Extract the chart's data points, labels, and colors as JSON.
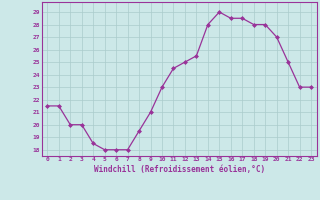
{
  "x": [
    0,
    1,
    2,
    3,
    4,
    5,
    6,
    7,
    8,
    9,
    10,
    11,
    12,
    13,
    14,
    15,
    16,
    17,
    18,
    19,
    20,
    21,
    22,
    23
  ],
  "y": [
    21.5,
    21.5,
    20.0,
    20.0,
    18.5,
    18.0,
    18.0,
    18.0,
    19.5,
    21.0,
    23.0,
    24.5,
    25.0,
    25.5,
    28.0,
    29.0,
    28.5,
    28.5,
    28.0,
    28.0,
    27.0,
    25.0,
    23.0,
    23.0
  ],
  "xlabel": "Windchill (Refroidissement éolien,°C)",
  "ylim": [
    17.5,
    29.8
  ],
  "xlim": [
    -0.5,
    23.5
  ],
  "yticks": [
    18,
    19,
    20,
    21,
    22,
    23,
    24,
    25,
    26,
    27,
    28,
    29
  ],
  "xticks": [
    0,
    1,
    2,
    3,
    4,
    5,
    6,
    7,
    8,
    9,
    10,
    11,
    12,
    13,
    14,
    15,
    16,
    17,
    18,
    19,
    20,
    21,
    22,
    23
  ],
  "line_color": "#993399",
  "marker_color": "#993399",
  "bg_color": "#cce8e8",
  "grid_color": "#aacccc"
}
